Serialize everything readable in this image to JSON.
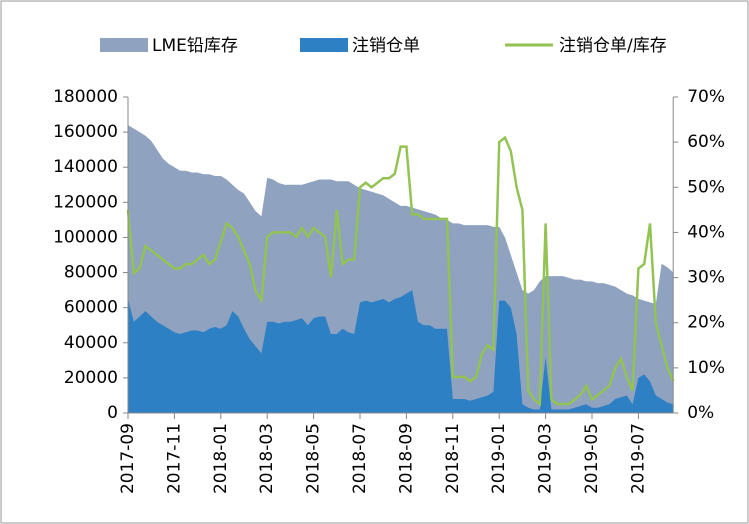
{
  "chart_data": {
    "type": "area_line",
    "categories": [
      "2017-09",
      null,
      null,
      null,
      null,
      null,
      null,
      null,
      "2017-11",
      null,
      null,
      null,
      null,
      null,
      null,
      null,
      "2018-01",
      null,
      null,
      null,
      null,
      null,
      null,
      null,
      "2018-03",
      null,
      null,
      null,
      null,
      null,
      null,
      null,
      "2018-05",
      null,
      null,
      null,
      null,
      null,
      null,
      null,
      "2018-07",
      null,
      null,
      null,
      null,
      null,
      null,
      null,
      "2018-09",
      null,
      null,
      null,
      null,
      null,
      null,
      null,
      "2018-11",
      null,
      null,
      null,
      null,
      null,
      null,
      null,
      "2019-01",
      null,
      null,
      null,
      null,
      null,
      null,
      null,
      "2019-03",
      null,
      null,
      null,
      null,
      null,
      null,
      null,
      "2019-05",
      null,
      null,
      null,
      null,
      null,
      null,
      null,
      "2019-07",
      null,
      null,
      null,
      null,
      null,
      null
    ],
    "series": [
      {
        "name": "LME铅库存",
        "color": "#8fa2c0",
        "values": [
          164000,
          162000,
          160000,
          158000,
          155000,
          150000,
          145000,
          142000,
          140000,
          138000,
          138000,
          137000,
          137000,
          136000,
          136000,
          135000,
          135000,
          133000,
          130000,
          127000,
          125000,
          120000,
          115000,
          112000,
          134000,
          133000,
          131000,
          130000,
          130000,
          130000,
          130000,
          131000,
          132000,
          133000,
          133000,
          133000,
          132000,
          132000,
          132000,
          130000,
          128000,
          127000,
          126000,
          125000,
          124000,
          122000,
          120000,
          118000,
          118000,
          117000,
          116000,
          115000,
          114000,
          113000,
          111000,
          110000,
          108000,
          108000,
          107000,
          107000,
          107000,
          107000,
          107000,
          106000,
          106000,
          100000,
          90000,
          80000,
          70000,
          68000,
          70000,
          75000,
          78000,
          78000,
          78000,
          78000,
          77000,
          76000,
          76000,
          75000,
          75000,
          74000,
          74000,
          73000,
          72000,
          70000,
          68000,
          67000,
          65000,
          64000,
          63000,
          62000,
          85000,
          83000,
          80000
        ]
      },
      {
        "name": "注销仓单",
        "color": "#2e80c4",
        "values": [
          65000,
          52000,
          55000,
          58000,
          55000,
          52000,
          50000,
          48000,
          46000,
          45000,
          46000,
          47000,
          47000,
          46000,
          48000,
          49000,
          48000,
          50000,
          58000,
          55000,
          48000,
          42000,
          38000,
          34000,
          52000,
          52000,
          51000,
          52000,
          52000,
          53000,
          54000,
          50000,
          54000,
          55000,
          55000,
          45000,
          45000,
          48000,
          46000,
          45000,
          63000,
          64000,
          63000,
          64000,
          65000,
          63000,
          65000,
          66000,
          68000,
          70000,
          52000,
          50000,
          50000,
          48000,
          48000,
          48000,
          8000,
          8000,
          8000,
          7000,
          8000,
          9000,
          10000,
          12000,
          64000,
          64000,
          60000,
          45000,
          5000,
          3000,
          2000,
          2000,
          32000,
          2000,
          2000,
          2000,
          2000,
          3000,
          4000,
          5000,
          3000,
          3000,
          4000,
          5000,
          8000,
          9000,
          10000,
          5000,
          20000,
          22000,
          18000,
          10000,
          8000,
          6000,
          5000
        ]
      },
      {
        "name": "注销仓单/库存",
        "color": "#92c353",
        "axis": "y2",
        "values": [
          45,
          31,
          32,
          37,
          36,
          35,
          34,
          33,
          32,
          32,
          33,
          33,
          34,
          35,
          33,
          34,
          38,
          42,
          41,
          39,
          36,
          33,
          27,
          25,
          39,
          40,
          40,
          40,
          40,
          39,
          41,
          39,
          41,
          40,
          39,
          30,
          45,
          33,
          34,
          34,
          50,
          51,
          50,
          51,
          52,
          52,
          53,
          59,
          59,
          44,
          44,
          43,
          43,
          43,
          43,
          43,
          8,
          8,
          8,
          7,
          8,
          13,
          15,
          14,
          60,
          61,
          58,
          50,
          45,
          5,
          3,
          2,
          42,
          3,
          2,
          2,
          2,
          3,
          4,
          6,
          3,
          4,
          5,
          6,
          10,
          12,
          8,
          5,
          32,
          33,
          42,
          20,
          15,
          10,
          7
        ]
      }
    ],
    "ylim": [
      0,
      180000
    ],
    "yticks": [
      0,
      20000,
      40000,
      60000,
      80000,
      100000,
      120000,
      140000,
      160000,
      180000
    ],
    "y2lim": [
      0,
      70
    ],
    "y2ticks": [
      {
        "value": 0,
        "label": "0%"
      },
      {
        "value": 10,
        "label": "10%"
      },
      {
        "value": 20,
        "label": "20%"
      },
      {
        "value": 30,
        "label": "30%"
      },
      {
        "value": 40,
        "label": "40%"
      },
      {
        "value": 50,
        "label": "50%"
      },
      {
        "value": 60,
        "label": "60%"
      },
      {
        "value": 70,
        "label": "70%"
      }
    ]
  }
}
